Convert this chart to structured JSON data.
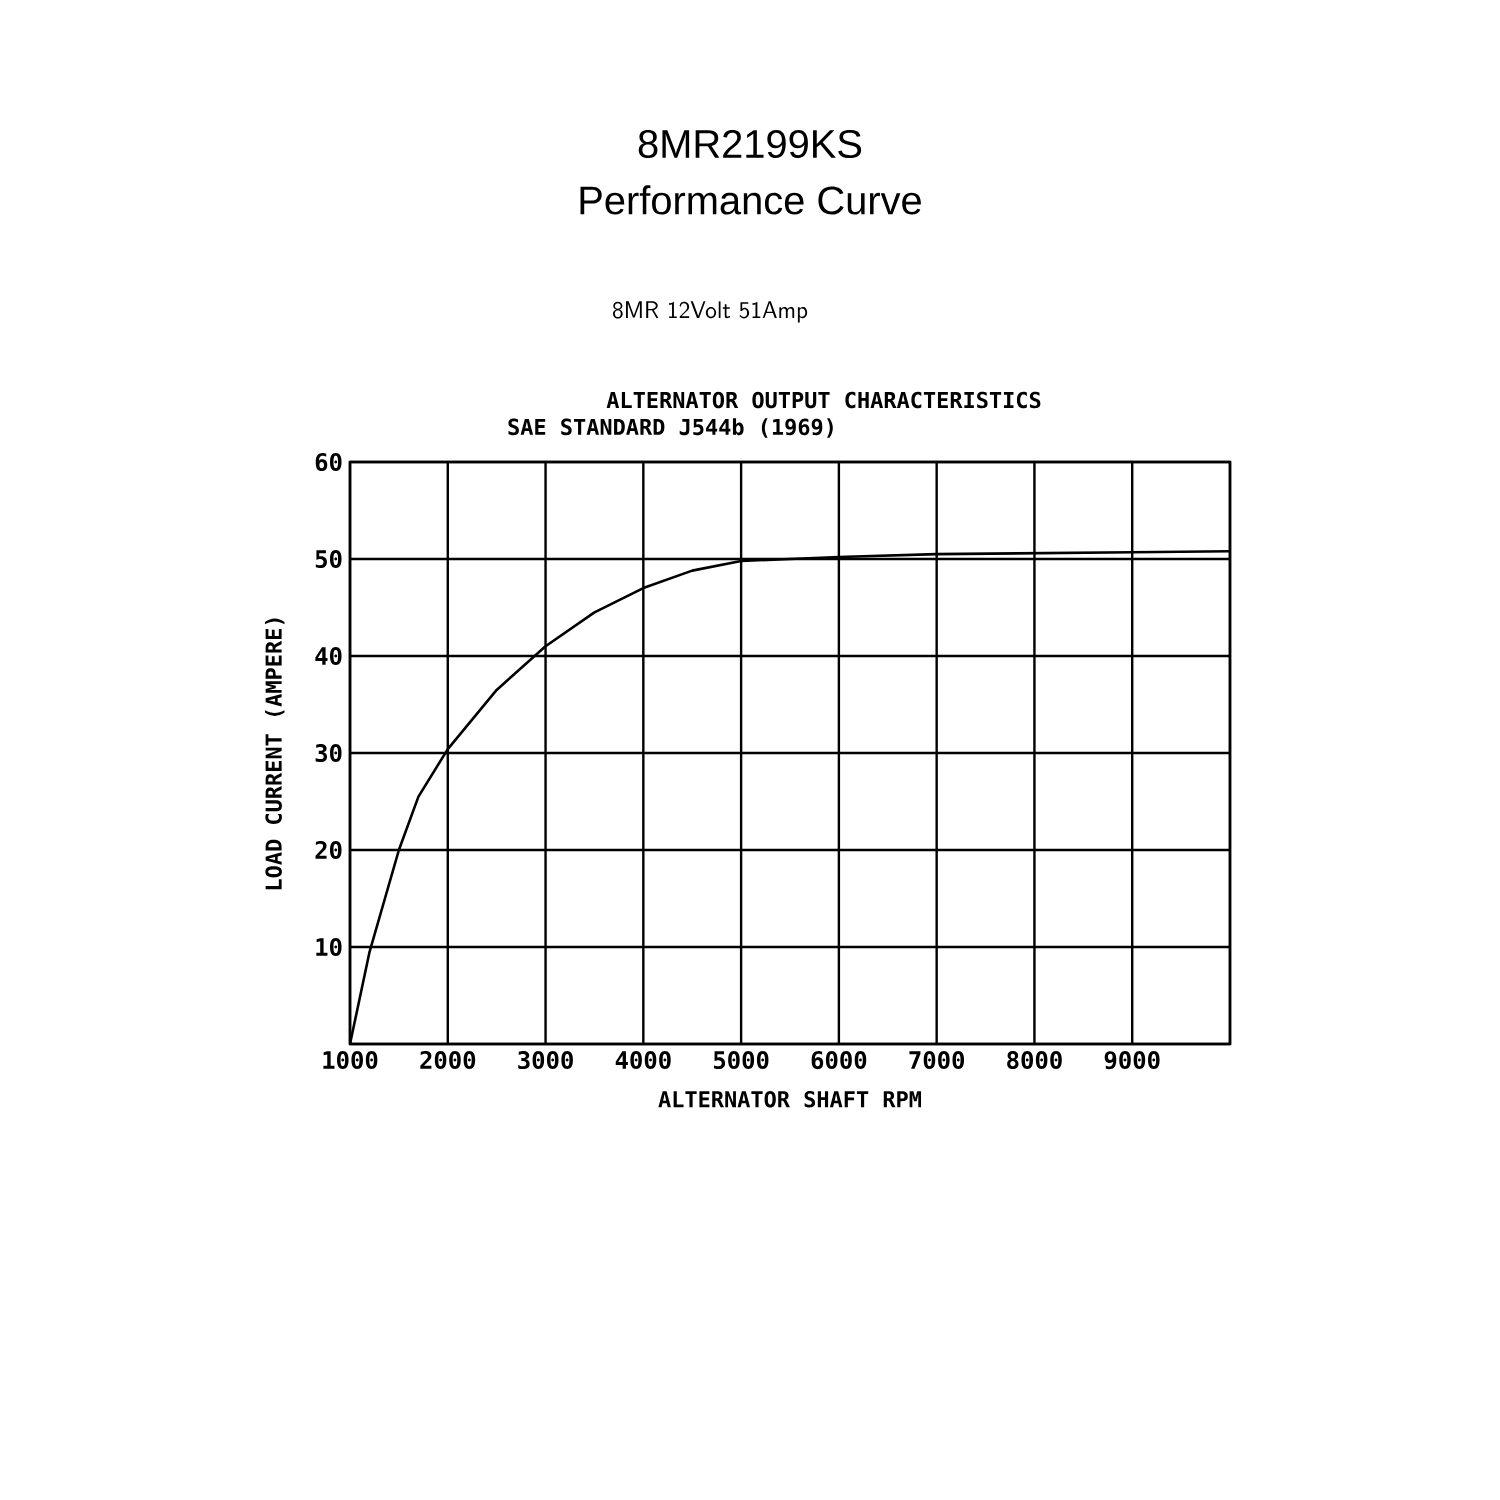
{
  "chart_data": {
    "type": "line",
    "title": "8MR2199KS",
    "subtitle": "Performance Curve",
    "annotations": [
      "8MR 12Volt 51Amp",
      "ALTERNATOR OUTPUT CHARACTERISTICS",
      "SAE STANDARD J544b (1969)"
    ],
    "xlabel": "ALTERNATOR SHAFT RPM",
    "ylabel": "LOAD CURRENT (AMPERE)",
    "x": [
      1000,
      1200,
      1500,
      1700,
      2000,
      2500,
      3000,
      3500,
      4000,
      4500,
      5000,
      5500,
      6000,
      7000,
      8000,
      9000,
      10000
    ],
    "series": [
      {
        "color": "#000000",
        "values": [
          0,
          9.5,
          20,
          25.5,
          30.4,
          36.5,
          41,
          44.5,
          47,
          48.8,
          49.8,
          50,
          50.2,
          50.5,
          50.6,
          50.7,
          50.8
        ]
      }
    ],
    "xlim": [
      1000,
      10000
    ],
    "xticks": [
      1000,
      2000,
      3000,
      4000,
      5000,
      6000,
      7000,
      8000,
      9000,
      {
        "value": 10000,
        "label": null
      }
    ],
    "ylim": [
      0,
      60
    ],
    "yticks": [
      {
        "value": 0,
        "label": null
      },
      10,
      20,
      30,
      40,
      50,
      60
    ],
    "grid": true,
    "marker": "none",
    "line_style": "solid"
  }
}
